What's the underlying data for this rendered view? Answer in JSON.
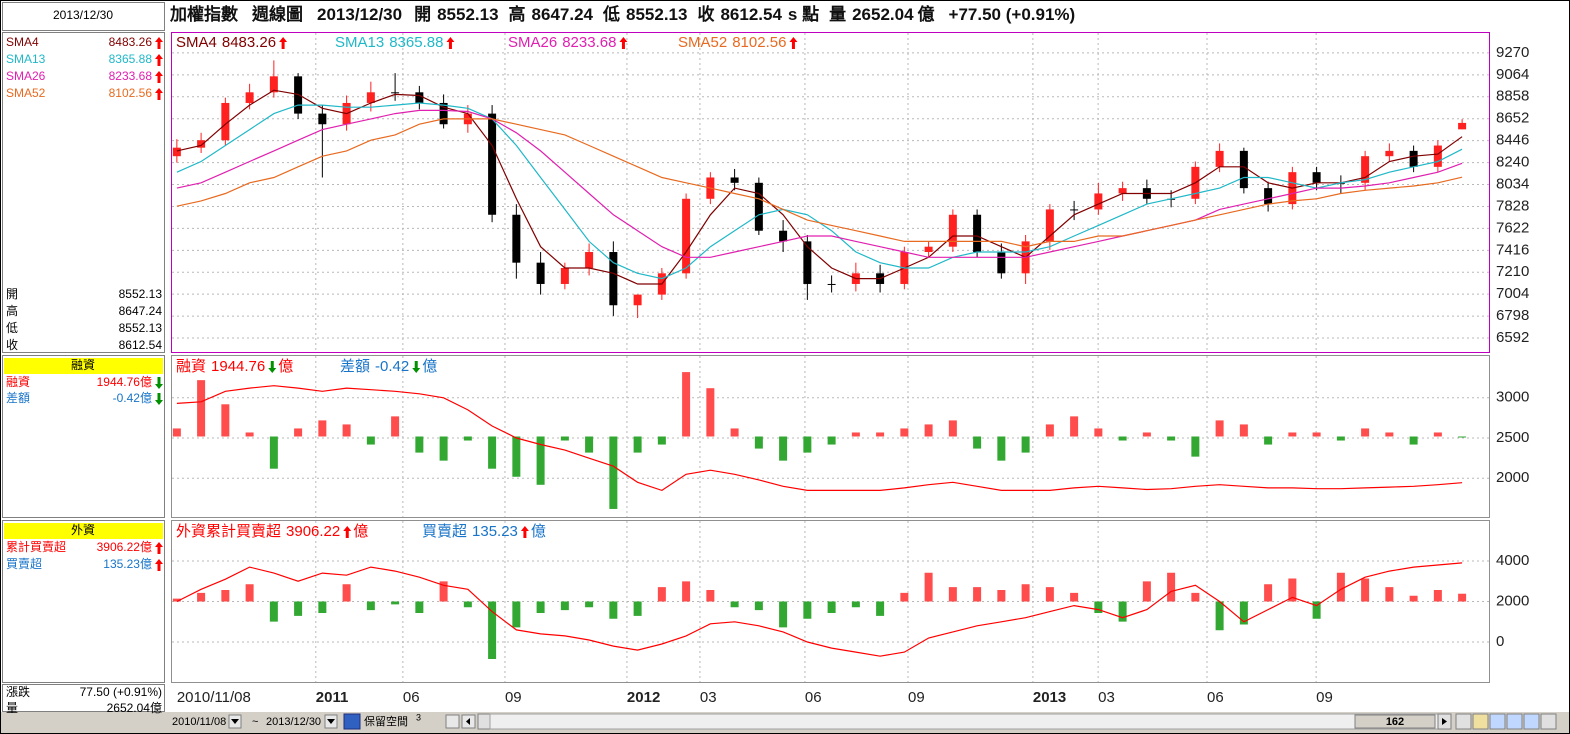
{
  "header": {
    "title": "加權指數",
    "period": "週線圖",
    "date": "2013/12/30",
    "point_unit": "s 點",
    "volume_label": "量",
    "volume": 2652.04,
    "unit": "億",
    "change": "+77.50 (+0.91%)"
  },
  "sidebar": {
    "ohlc_labels": [
      "開",
      "高",
      "低",
      "收"
    ],
    "foreign_title": "外資",
    "foreign_cum_label": "累計買賣超",
    "change_label": "漲跌",
    "change": "77.50 (+0.91%)"
  },
  "chart_data": [
    {
      "type": "candlestick",
      "open": [
        8300,
        8380,
        8450,
        8800,
        8900,
        9050,
        8700,
        8600,
        8800,
        8900,
        8900,
        8800,
        8600,
        8700,
        7750,
        7300,
        7100,
        7250,
        7400,
        6900,
        7000,
        7200,
        7900,
        8100,
        8050,
        7600,
        7500,
        7100,
        7100,
        7200,
        7100,
        7400,
        7450,
        7750,
        7400,
        7200,
        7500,
        7800,
        7800,
        7950,
        8000,
        7900,
        7900,
        8200,
        8350,
        8000,
        7850,
        8150,
        8050,
        8050,
        8300,
        8350,
        8200,
        8552.13
      ],
      "high": [
        8460,
        8520,
        8850,
        8980,
        9200,
        9080,
        8780,
        8870,
        9000,
        9080,
        8960,
        8880,
        8780,
        8780,
        7850,
        7400,
        7300,
        7480,
        7500,
        7000,
        7250,
        7950,
        8150,
        8180,
        8100,
        7700,
        7560,
        7180,
        7300,
        7280,
        7450,
        7500,
        7800,
        7800,
        7480,
        7560,
        7850,
        7880,
        8050,
        8060,
        8080,
        7980,
        8250,
        8420,
        8380,
        8060,
        8200,
        8200,
        8120,
        8350,
        8420,
        8400,
        8450,
        8647.24
      ],
      "low": [
        8240,
        8330,
        8400,
        8740,
        8850,
        8650,
        8100,
        8540,
        8720,
        8820,
        8740,
        8560,
        8520,
        7680,
        7150,
        7000,
        7050,
        7180,
        6800,
        6780,
        6950,
        7150,
        7850,
        7980,
        7560,
        7400,
        6950,
        7020,
        7030,
        7020,
        7050,
        7350,
        7400,
        7350,
        7150,
        7100,
        7420,
        7700,
        7750,
        7880,
        7850,
        7820,
        7850,
        8150,
        7950,
        7780,
        7800,
        7980,
        7950,
        7980,
        8250,
        8150,
        8150,
        8552.13
      ],
      "close": [
        8380,
        8450,
        8800,
        8900,
        9050,
        8700,
        8600,
        8800,
        8900,
        8900,
        8800,
        8600,
        8700,
        7750,
        7300,
        7100,
        7250,
        7400,
        6900,
        7000,
        7200,
        7900,
        8100,
        8050,
        7600,
        7500,
        7100,
        7100,
        7200,
        7100,
        7400,
        7450,
        7750,
        7400,
        7200,
        7500,
        7800,
        7800,
        7950,
        8000,
        7900,
        7900,
        8200,
        8350,
        8000,
        7850,
        8150,
        8050,
        8050,
        8300,
        8350,
        8200,
        8400,
        8612.54
      ],
      "up_color": "#ff2020",
      "down_color": "#000000",
      "series": [
        {
          "name": "SMA4",
          "color": "#800000",
          "values": [
            8350,
            8400,
            8600,
            8780,
            8920,
            8880,
            8750,
            8700,
            8800,
            8880,
            8870,
            8760,
            8700,
            8400,
            7900,
            7450,
            7250,
            7250,
            7200,
            7100,
            7100,
            7400,
            7750,
            8000,
            7950,
            7750,
            7450,
            7250,
            7150,
            7150,
            7250,
            7350,
            7550,
            7550,
            7450,
            7350,
            7550,
            7750,
            7850,
            7950,
            7950,
            7950,
            8050,
            8200,
            8200,
            8050,
            8000,
            8050,
            8050,
            8100,
            8250,
            8300,
            8320,
            8483.26
          ]
        },
        {
          "name": "SMA13",
          "color": "#20b8c8",
          "values": [
            8150,
            8250,
            8400,
            8550,
            8700,
            8780,
            8780,
            8760,
            8760,
            8780,
            8800,
            8780,
            8750,
            8650,
            8400,
            8100,
            7800,
            7500,
            7300,
            7200,
            7150,
            7250,
            7450,
            7600,
            7750,
            7800,
            7750,
            7600,
            7400,
            7300,
            7250,
            7250,
            7350,
            7400,
            7400,
            7400,
            7450,
            7550,
            7650,
            7750,
            7850,
            7900,
            7950,
            8000,
            8100,
            8100,
            8050,
            8000,
            8050,
            8080,
            8150,
            8200,
            8250,
            8365.88
          ]
        },
        {
          "name": "SMA26",
          "color": "#e020b0",
          "values": [
            8000,
            8050,
            8150,
            8250,
            8350,
            8450,
            8550,
            8600,
            8650,
            8700,
            8730,
            8730,
            8720,
            8650,
            8520,
            8350,
            8150,
            7950,
            7750,
            7600,
            7450,
            7350,
            7350,
            7400,
            7450,
            7500,
            7550,
            7550,
            7500,
            7450,
            7400,
            7350,
            7350,
            7350,
            7350,
            7350,
            7400,
            7450,
            7500,
            7550,
            7600,
            7650,
            7700,
            7800,
            7850,
            7900,
            7950,
            8000,
            8000,
            8020,
            8050,
            8100,
            8150,
            8233.68
          ]
        },
        {
          "name": "SMA52",
          "color": "#e86a20",
          "values": [
            7830,
            7880,
            7950,
            8050,
            8100,
            8200,
            8300,
            8350,
            8450,
            8500,
            8600,
            8650,
            8650,
            8650,
            8600,
            8550,
            8500,
            8400,
            8300,
            8200,
            8100,
            8050,
            8000,
            7950,
            7900,
            7800,
            7700,
            7650,
            7600,
            7550,
            7500,
            7500,
            7500,
            7500,
            7500,
            7450,
            7500,
            7500,
            7550,
            7550,
            7600,
            7650,
            7700,
            7750,
            7800,
            7850,
            7880,
            7900,
            7950,
            7980,
            8000,
            8020,
            8050,
            8102.56
          ]
        }
      ],
      "ylim": [
        6461,
        9457
      ],
      "yticks": [
        6592,
        6798,
        7004,
        7210,
        7416,
        7622,
        7828,
        8034,
        8240,
        8446,
        8652,
        8858,
        9064,
        9270
      ],
      "grid": true
    },
    {
      "type": "combo",
      "series": [
        {
          "name": "融資",
          "color": "#ff0000",
          "values": [
            2930,
            2950,
            3080,
            3120,
            3150,
            3120,
            3080,
            3120,
            3100,
            3080,
            3050,
            3000,
            2850,
            2650,
            2500,
            2420,
            2350,
            2250,
            2150,
            1950,
            1850,
            2050,
            2100,
            2050,
            1980,
            1900,
            1850,
            1850,
            1850,
            1850,
            1880,
            1920,
            1950,
            1900,
            1850,
            1850,
            1850,
            1880,
            1900,
            1880,
            1860,
            1870,
            1900,
            1920,
            1900,
            1880,
            1880,
            1870,
            1870,
            1880,
            1890,
            1900,
            1920,
            1944.76
          ]
        },
        {
          "name": "差額",
          "color": "#1874c8",
          "axis": "y2",
          "up_color": "#ff4c4c",
          "down_color": "#32a832",
          "values": [
            10,
            70,
            40,
            5,
            -40,
            10,
            20,
            15,
            -10,
            25,
            -20,
            -30,
            -5,
            -40,
            -50,
            -60,
            -5,
            -20,
            -90,
            -20,
            -10,
            80,
            60,
            10,
            -15,
            -30,
            -20,
            -10,
            5,
            5,
            10,
            15,
            20,
            -15,
            -30,
            -20,
            15,
            25,
            10,
            -5,
            5,
            -5,
            -25,
            20,
            15,
            -10,
            5,
            5,
            -5,
            10,
            5,
            -10,
            5,
            -0.42
          ]
        }
      ],
      "ylim": [
        1519,
        3519
      ],
      "yticks": [
        2000,
        2500,
        3000
      ],
      "y2lim": [
        -100,
        100
      ],
      "grid": true
    },
    {
      "type": "combo",
      "series": [
        {
          "name": "外資累計買賣超",
          "color": "#ff0000",
          "values": [
            2000,
            2600,
            3100,
            3700,
            3400,
            3000,
            3400,
            3300,
            3700,
            3500,
            3200,
            2800,
            2600,
            1500,
            600,
            400,
            300,
            100,
            -200,
            -400,
            -100,
            300,
            900,
            1000,
            800,
            500,
            0,
            -300,
            -500,
            -700,
            -500,
            200,
            500,
            800,
            1000,
            1200,
            1500,
            1800,
            1600,
            1200,
            1600,
            2500,
            2800,
            2000,
            1000,
            1600,
            2200,
            1800,
            2600,
            3200,
            3500,
            3700,
            3800,
            3906.22
          ]
        },
        {
          "name": "買賣超",
          "color": "#1874c8",
          "axis": "y2",
          "up_color": "#ff4c4c",
          "down_color": "#32a832",
          "values": [
            50,
            150,
            200,
            300,
            -350,
            -250,
            -200,
            300,
            -150,
            -50,
            -200,
            350,
            -100,
            -1000,
            -450,
            -200,
            -150,
            -100,
            -300,
            -250,
            250,
            350,
            200,
            -100,
            -150,
            -450,
            -300,
            -200,
            -100,
            -250,
            150,
            500,
            250,
            250,
            200,
            300,
            250,
            150,
            -200,
            -350,
            350,
            500,
            150,
            -500,
            -400,
            300,
            400,
            -300,
            500,
            400,
            250,
            100,
            200,
            135.23
          ]
        }
      ],
      "ylim": [
        -1975,
        5975
      ],
      "yticks": [
        0,
        2000,
        4000
      ],
      "y2lim": [
        -1400,
        1400
      ],
      "xlim": [
        -0.2,
        54.15
      ],
      "xticks": [
        {
          "value": 0,
          "label": "2010/11/08"
        },
        {
          "value": 5.73,
          "label": "2011"
        },
        {
          "value": 9.32,
          "label": "06"
        },
        {
          "value": 13.53,
          "label": "09"
        },
        {
          "value": 18.56,
          "label": "2012"
        },
        {
          "value": 21.57,
          "label": "03"
        },
        {
          "value": 25.9,
          "label": "06"
        },
        {
          "value": 30.15,
          "label": "09"
        },
        {
          "value": 35.3,
          "label": "2013"
        },
        {
          "value": 37.99,
          "label": "03"
        },
        {
          "value": 42.48,
          "label": "06"
        },
        {
          "value": 46.98,
          "label": "09"
        }
      ],
      "grid": true
    }
  ],
  "toolbar": {
    "start": "2010/11/08",
    "separator": "~",
    "reserve": "保留空間",
    "reserve_count": 3,
    "count": 162
  }
}
